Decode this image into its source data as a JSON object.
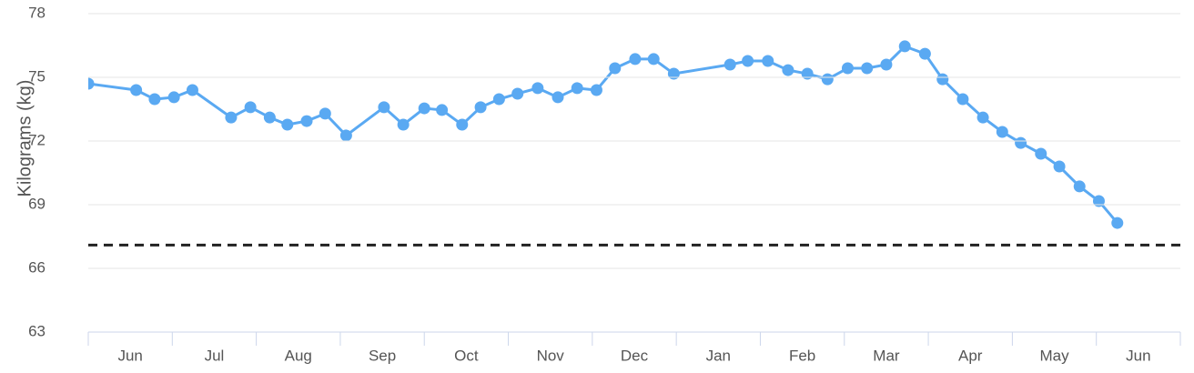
{
  "chart_data": {
    "type": "line",
    "y_label": "Kilograms (kg)",
    "categories": [
      "Jun",
      "Jul",
      "Aug",
      "Sep",
      "Oct",
      "Nov",
      "Dec",
      "Jan",
      "Feb",
      "Mar",
      "Apr",
      "May",
      "Jun"
    ],
    "xlim": [
      0,
      13
    ],
    "ylim": [
      63,
      78
    ],
    "yticks": [
      63,
      66,
      69,
      72,
      75,
      78
    ],
    "grid": true,
    "reference_line": 67.1,
    "reference_color": "#222222",
    "series": [
      {
        "color": "#5aa9f2",
        "x": [
          0,
          0.57,
          0.79,
          1.02,
          1.24,
          1.7,
          1.93,
          2.16,
          2.37,
          2.6,
          2.82,
          3.07,
          3.52,
          3.75,
          4.0,
          4.21,
          4.45,
          4.67,
          4.89,
          5.11,
          5.35,
          5.59,
          5.82,
          6.05,
          6.27,
          6.51,
          6.73,
          6.97,
          7.64,
          7.85,
          8.09,
          8.33,
          8.56,
          8.8,
          9.04,
          9.27,
          9.5,
          9.72,
          9.96,
          10.17,
          10.41,
          10.65,
          10.88,
          11.1,
          11.34,
          11.56,
          11.8,
          12.03,
          12.25
        ],
        "values": [
          74.7,
          74.4,
          73.97,
          74.06,
          74.4,
          73.11,
          73.59,
          73.11,
          72.77,
          72.94,
          73.29,
          72.26,
          73.59,
          72.77,
          73.54,
          73.46,
          72.77,
          73.59,
          73.97,
          74.23,
          74.49,
          74.06,
          74.49,
          74.4,
          75.43,
          75.86,
          75.86,
          75.17,
          75.6,
          75.77,
          75.77,
          75.34,
          75.17,
          74.91,
          75.43,
          75.43,
          75.6,
          76.46,
          76.11,
          74.91,
          73.97,
          73.11,
          72.43,
          71.91,
          71.4,
          70.8,
          69.86,
          69.17,
          68.14
        ]
      }
    ]
  }
}
